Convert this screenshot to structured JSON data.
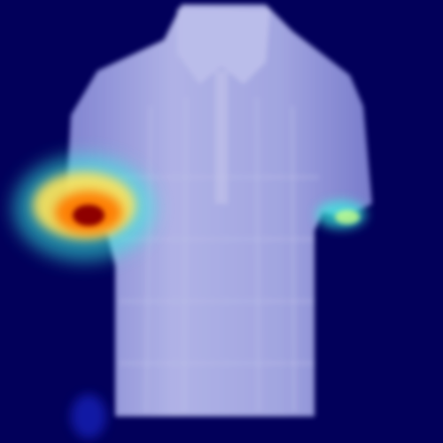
{
  "image": {
    "subject": "shirt-silhouette",
    "overlay": "attention-heatmap",
    "colors": {
      "background": "#02005a",
      "shirt": "#b9bdf2",
      "shirt_edge": "#8e92de",
      "heat_red": "#8e0000",
      "heat_orange": "#ff7a00",
      "heat_yellow": "#ffe45a",
      "heat_cyan": "#39f2e0"
    }
  }
}
